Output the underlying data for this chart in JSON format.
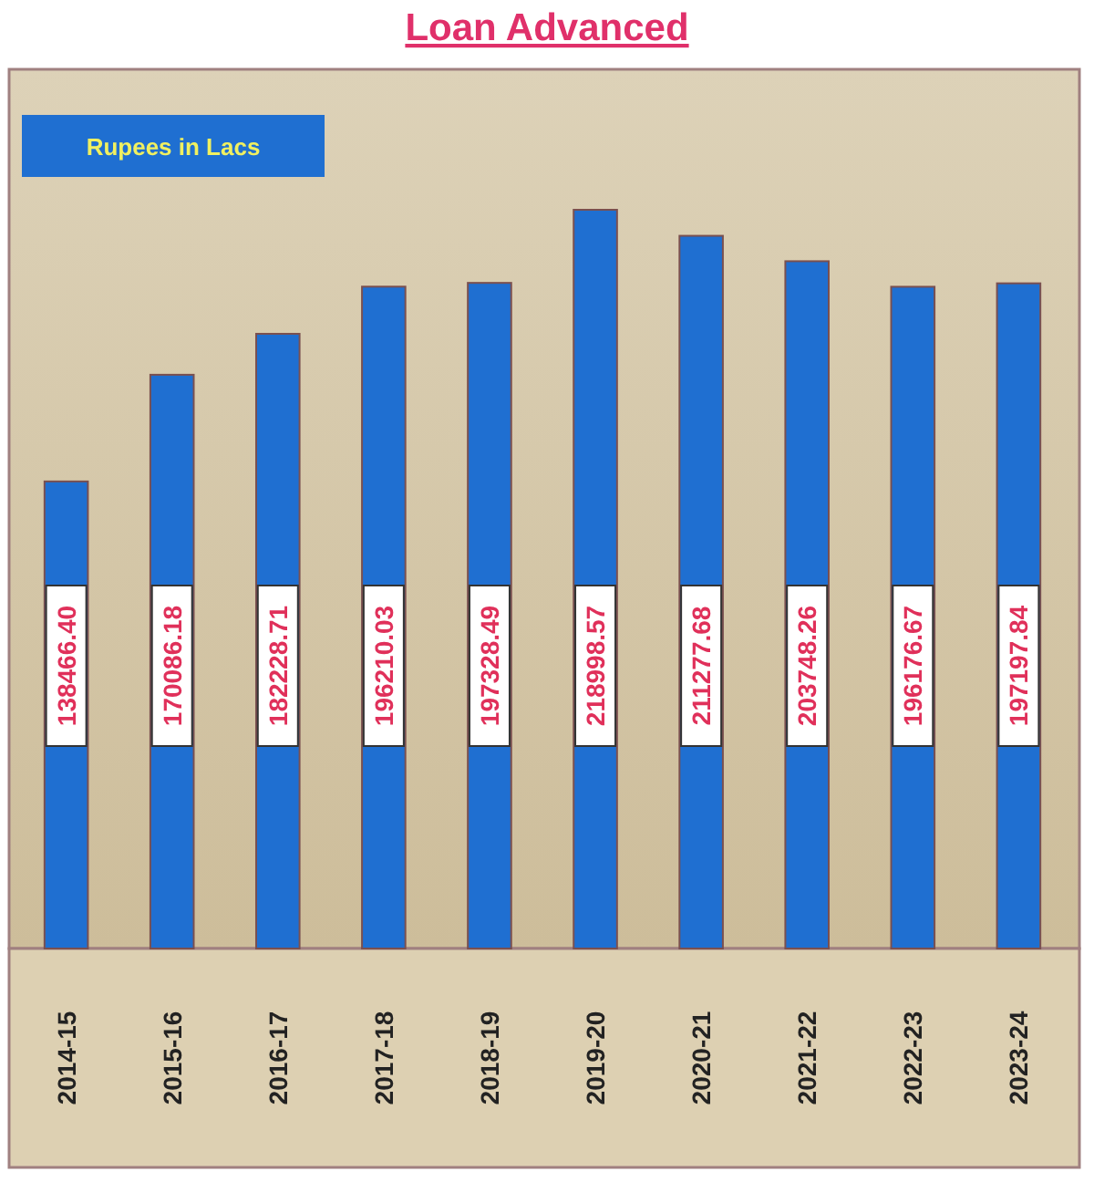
{
  "chart_data": {
    "type": "bar",
    "title": "Loan Advanced",
    "annotations": [
      "Rupees in Lacs"
    ],
    "categories": [
      "2014-15",
      "2015-16",
      "2016-17",
      "2017-18",
      "2018-19",
      "2019-20",
      "2020-21",
      "2021-22",
      "2022-23",
      "2023-24"
    ],
    "values": [
      138466.4,
      170086.18,
      182228.71,
      196210.03,
      197328.49,
      218998.57,
      211277.68,
      203748.26,
      196176.67,
      197197.84
    ],
    "value_labels": [
      "138466.40",
      "170086.18",
      "182228.71",
      "196210.03",
      "197328.49",
      "218998.57",
      "211277.68",
      "203748.26",
      "196176.67",
      "197197.84"
    ],
    "color": "#1f6fd1",
    "data_labels": true
  }
}
